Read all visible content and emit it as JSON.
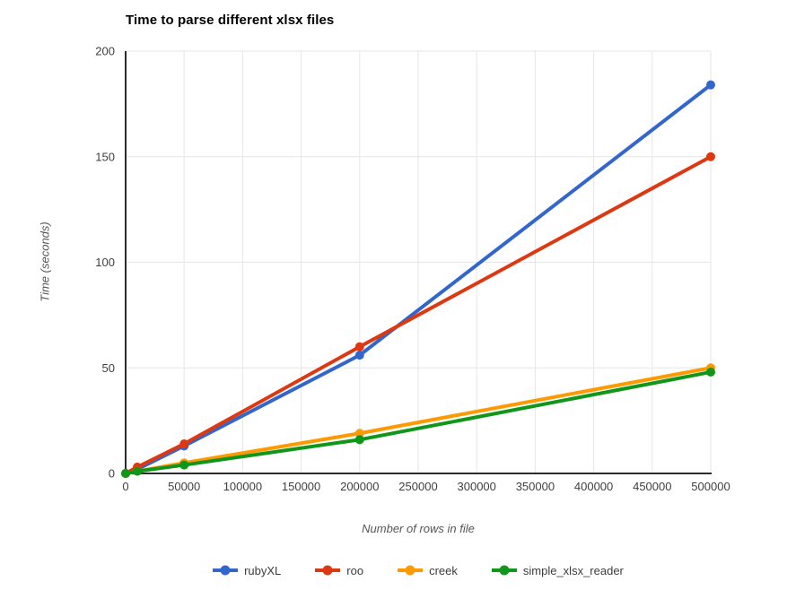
{
  "chart_data": {
    "type": "line",
    "title": "Time to parse different xlsx files",
    "xlabel": "Number of rows in file",
    "ylabel": "Time (seconds)",
    "x": [
      1,
      10000,
      50000,
      200000,
      500000
    ],
    "series": [
      {
        "name": "rubyXL",
        "color": "#3366CC",
        "values": [
          0,
          2,
          13,
          56,
          184
        ]
      },
      {
        "name": "roo",
        "color": "#DC3912",
        "values": [
          0,
          3,
          14,
          60,
          150
        ]
      },
      {
        "name": "creek",
        "color": "#FF9900",
        "values": [
          0,
          1,
          5,
          19,
          50
        ]
      },
      {
        "name": "simple_xlsx_reader",
        "color": "#109618",
        "values": [
          0,
          1,
          4,
          16,
          48
        ]
      }
    ],
    "xlim": [
      0,
      500000
    ],
    "ylim": [
      0,
      200
    ],
    "x_ticks": [
      0,
      50000,
      100000,
      150000,
      200000,
      250000,
      300000,
      350000,
      400000,
      450000,
      500000
    ],
    "y_ticks": [
      0,
      50,
      100,
      150,
      200
    ],
    "grid": true,
    "legend_position": "bottom"
  },
  "colors": {
    "background": "#ffffff",
    "grid": "#e6e6e6",
    "axis": "#2b2b2b",
    "tick_label": "#404040",
    "axis_title": "#555555",
    "title": "#000000",
    "legend_text": "#3c3c3c"
  }
}
